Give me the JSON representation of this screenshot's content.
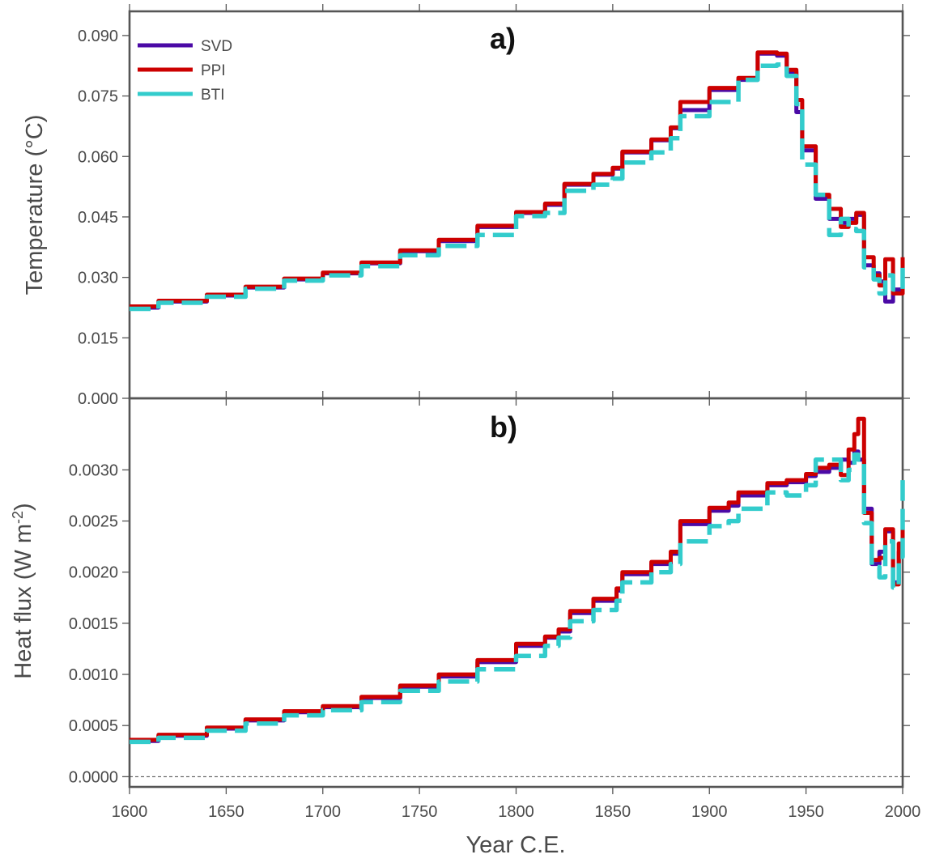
{
  "chart_data": [
    {
      "type": "line",
      "panel_label": "a)",
      "ylabel": "Temperature (°C)",
      "xlim": [
        1600,
        2000
      ],
      "ylim": [
        0.0,
        0.096
      ],
      "yticks": [
        "0.000",
        "0.015",
        "0.030",
        "0.045",
        "0.060",
        "0.075",
        "0.090"
      ],
      "legend_position": "top-left",
      "series": [
        {
          "name": "SVD",
          "color": "#4b0aa6",
          "style": "solid",
          "x": [
            1600,
            1615,
            1640,
            1660,
            1680,
            1700,
            1720,
            1740,
            1760,
            1780,
            1800,
            1815,
            1825,
            1840,
            1850,
            1855,
            1870,
            1880,
            1885,
            1900,
            1915,
            1925,
            1935,
            1940,
            1945,
            1948,
            1955,
            1962,
            1968,
            1972,
            1976,
            1980,
            1985,
            1988,
            1991,
            1995,
            2000
          ],
          "y": [
            0.0225,
            0.024,
            0.0255,
            0.0275,
            0.0295,
            0.031,
            0.0335,
            0.0365,
            0.039,
            0.0425,
            0.046,
            0.048,
            0.053,
            0.0555,
            0.057,
            0.061,
            0.064,
            0.067,
            0.0715,
            0.0765,
            0.079,
            0.0855,
            0.085,
            0.081,
            0.071,
            0.0615,
            0.0495,
            0.0445,
            0.0435,
            0.0445,
            0.0455,
            0.033,
            0.031,
            0.029,
            0.024,
            0.027,
            0.034
          ]
        },
        {
          "name": "PPI",
          "color": "#cc0000",
          "style": "solid",
          "x": [
            1600,
            1615,
            1640,
            1660,
            1680,
            1700,
            1720,
            1740,
            1760,
            1780,
            1800,
            1815,
            1825,
            1840,
            1850,
            1855,
            1870,
            1880,
            1885,
            1900,
            1915,
            1925,
            1935,
            1940,
            1945,
            1948,
            1955,
            1962,
            1968,
            1972,
            1976,
            1980,
            1985,
            1988,
            1991,
            1995,
            2000
          ],
          "y": [
            0.0228,
            0.0242,
            0.0257,
            0.0277,
            0.0297,
            0.0312,
            0.0337,
            0.0367,
            0.0393,
            0.0428,
            0.0462,
            0.0483,
            0.0532,
            0.0557,
            0.0572,
            0.0612,
            0.0642,
            0.0672,
            0.0735,
            0.077,
            0.0795,
            0.0858,
            0.0855,
            0.0815,
            0.074,
            0.0625,
            0.0505,
            0.047,
            0.0425,
            0.0435,
            0.046,
            0.035,
            0.0305,
            0.028,
            0.0345,
            0.026,
            0.035
          ]
        },
        {
          "name": "BTI",
          "color": "#33cccc",
          "style": "dashed",
          "x": [
            1600,
            1615,
            1640,
            1660,
            1680,
            1700,
            1720,
            1740,
            1760,
            1780,
            1800,
            1815,
            1825,
            1840,
            1850,
            1855,
            1870,
            1880,
            1885,
            1900,
            1915,
            1925,
            1935,
            1940,
            1945,
            1948,
            1955,
            1962,
            1968,
            1972,
            1976,
            1980,
            1985,
            1988,
            1991,
            1995,
            2000
          ],
          "y": [
            0.0222,
            0.0237,
            0.0252,
            0.0272,
            0.0292,
            0.0305,
            0.0328,
            0.0355,
            0.0378,
            0.0405,
            0.0452,
            0.046,
            0.0515,
            0.053,
            0.0545,
            0.0585,
            0.061,
            0.0645,
            0.07,
            0.0735,
            0.079,
            0.0825,
            0.0828,
            0.08,
            0.073,
            0.058,
            0.0505,
            0.0405,
            0.0445,
            0.042,
            0.0415,
            0.0325,
            0.0295,
            0.026,
            0.0305,
            0.027,
            0.0325
          ]
        }
      ]
    },
    {
      "type": "line",
      "panel_label": "b)",
      "ylabel_main": "Heat flux (W m",
      "ylabel_sup": "-2",
      "ylabel_tail": ")",
      "xlabel": "Year C.E.",
      "xlim": [
        1600,
        2000
      ],
      "ylim": [
        -0.0001,
        0.0037
      ],
      "xticks": [
        "1600",
        "1650",
        "1700",
        "1750",
        "1800",
        "1850",
        "1900",
        "1950",
        "2000"
      ],
      "yticks": [
        "0.0000",
        "0.0005",
        "0.0010",
        "0.0015",
        "0.0020",
        "0.0025",
        "0.0030"
      ],
      "series": [
        {
          "name": "SVD",
          "color": "#4b0aa6",
          "style": "solid",
          "x": [
            1600,
            1615,
            1640,
            1660,
            1680,
            1700,
            1720,
            1740,
            1760,
            1780,
            1800,
            1815,
            1822,
            1828,
            1840,
            1852,
            1855,
            1870,
            1880,
            1885,
            1900,
            1910,
            1915,
            1930,
            1940,
            1950,
            1955,
            1962,
            1968,
            1972,
            1975,
            1977,
            1980,
            1984,
            1988,
            1991,
            1995,
            1998,
            2000
          ],
          "y": [
            0.00035,
            0.0004,
            0.00047,
            0.00055,
            0.00063,
            0.00068,
            0.00077,
            0.00088,
            0.00098,
            0.00112,
            0.00128,
            0.00136,
            0.00142,
            0.0016,
            0.00172,
            0.00182,
            0.00198,
            0.00208,
            0.00218,
            0.00247,
            0.0026,
            0.00265,
            0.00275,
            0.00285,
            0.00288,
            0.00294,
            0.00298,
            0.00302,
            0.0031,
            0.00307,
            0.00318,
            0.0031,
            0.00262,
            0.00208,
            0.0022,
            0.0024,
            0.0019,
            0.0022,
            0.0024
          ]
        },
        {
          "name": "PPI",
          "color": "#cc0000",
          "style": "solid",
          "x": [
            1600,
            1615,
            1640,
            1660,
            1680,
            1700,
            1720,
            1740,
            1760,
            1780,
            1800,
            1815,
            1822,
            1828,
            1840,
            1852,
            1855,
            1870,
            1880,
            1885,
            1900,
            1910,
            1915,
            1930,
            1940,
            1950,
            1955,
            1962,
            1968,
            1972,
            1975,
            1977,
            1980,
            1984,
            1988,
            1991,
            1995,
            1998,
            2000
          ],
          "y": [
            0.00036,
            0.00041,
            0.00048,
            0.00056,
            0.00064,
            0.00069,
            0.00078,
            0.00089,
            0.001,
            0.00114,
            0.0013,
            0.00137,
            0.00144,
            0.00162,
            0.00174,
            0.00184,
            0.002,
            0.0021,
            0.0022,
            0.0025,
            0.00263,
            0.00268,
            0.00278,
            0.00287,
            0.0029,
            0.00296,
            0.00302,
            0.00305,
            0.00295,
            0.0032,
            0.00335,
            0.0035,
            0.00258,
            0.00212,
            0.00214,
            0.00242,
            0.00188,
            0.00228,
            0.0025
          ]
        },
        {
          "name": "BTI",
          "color": "#33cccc",
          "style": "dashed",
          "x": [
            1600,
            1615,
            1640,
            1660,
            1680,
            1700,
            1720,
            1740,
            1760,
            1780,
            1800,
            1815,
            1822,
            1828,
            1840,
            1852,
            1855,
            1870,
            1880,
            1885,
            1900,
            1910,
            1915,
            1930,
            1940,
            1950,
            1955,
            1962,
            1968,
            1972,
            1975,
            1977,
            1980,
            1984,
            1988,
            1991,
            1995,
            1998,
            2000
          ],
          "y": [
            0.00034,
            0.00038,
            0.00045,
            0.00052,
            0.0006,
            0.00065,
            0.00073,
            0.00084,
            0.00093,
            0.00105,
            0.00118,
            0.00128,
            0.00136,
            0.00152,
            0.00163,
            0.00172,
            0.0019,
            0.002,
            0.00208,
            0.0023,
            0.00245,
            0.0025,
            0.00262,
            0.00278,
            0.00275,
            0.00285,
            0.0031,
            0.0031,
            0.0029,
            0.003,
            0.00315,
            0.0031,
            0.00248,
            0.00205,
            0.00195,
            0.0023,
            0.00185,
            0.00215,
            0.0029
          ]
        }
      ]
    }
  ]
}
